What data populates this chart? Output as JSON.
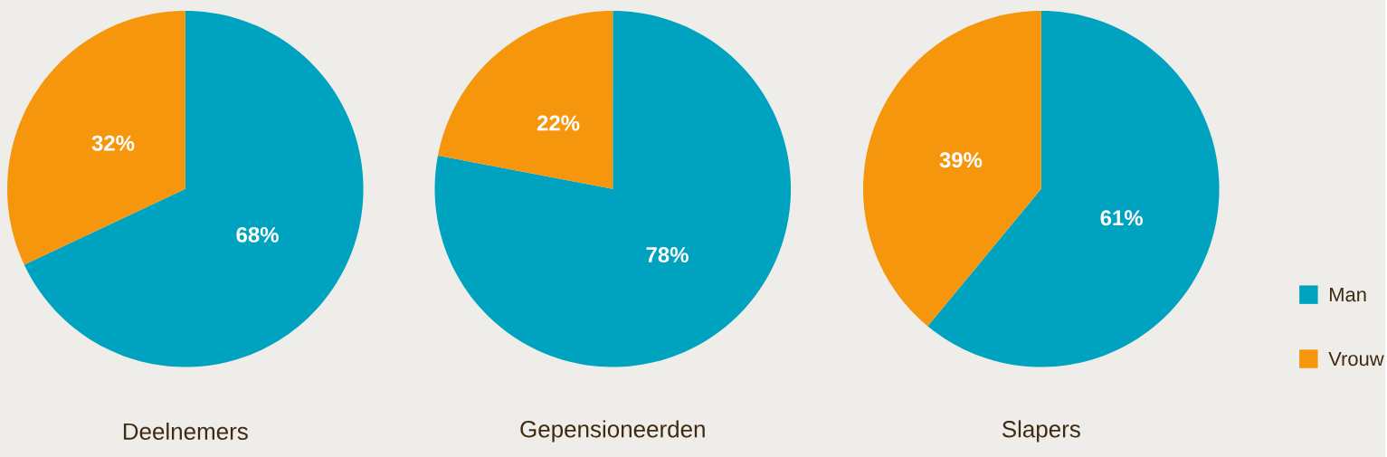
{
  "chart_data": [
    {
      "type": "pie",
      "title": "Deelnemers",
      "values": [
        68,
        32
      ],
      "colors": [
        "#00a3bf",
        "#f5960d"
      ],
      "value_labels": [
        "68%",
        "32%"
      ],
      "legend": false
    },
    {
      "type": "pie",
      "title": "Gepensioneerden",
      "values": [
        78,
        22
      ],
      "colors": [
        "#00a3bf",
        "#f5960d"
      ],
      "value_labels": [
        "78%",
        "22%"
      ],
      "legend": false
    },
    {
      "type": "pie",
      "title": "Slapers",
      "categories": [
        "Man",
        "Vrouw"
      ],
      "values": [
        61,
        39
      ],
      "colors": [
        "#00a3bf",
        "#f5960d"
      ],
      "value_labels": [
        "61%",
        "39%"
      ],
      "legend": "right"
    }
  ]
}
